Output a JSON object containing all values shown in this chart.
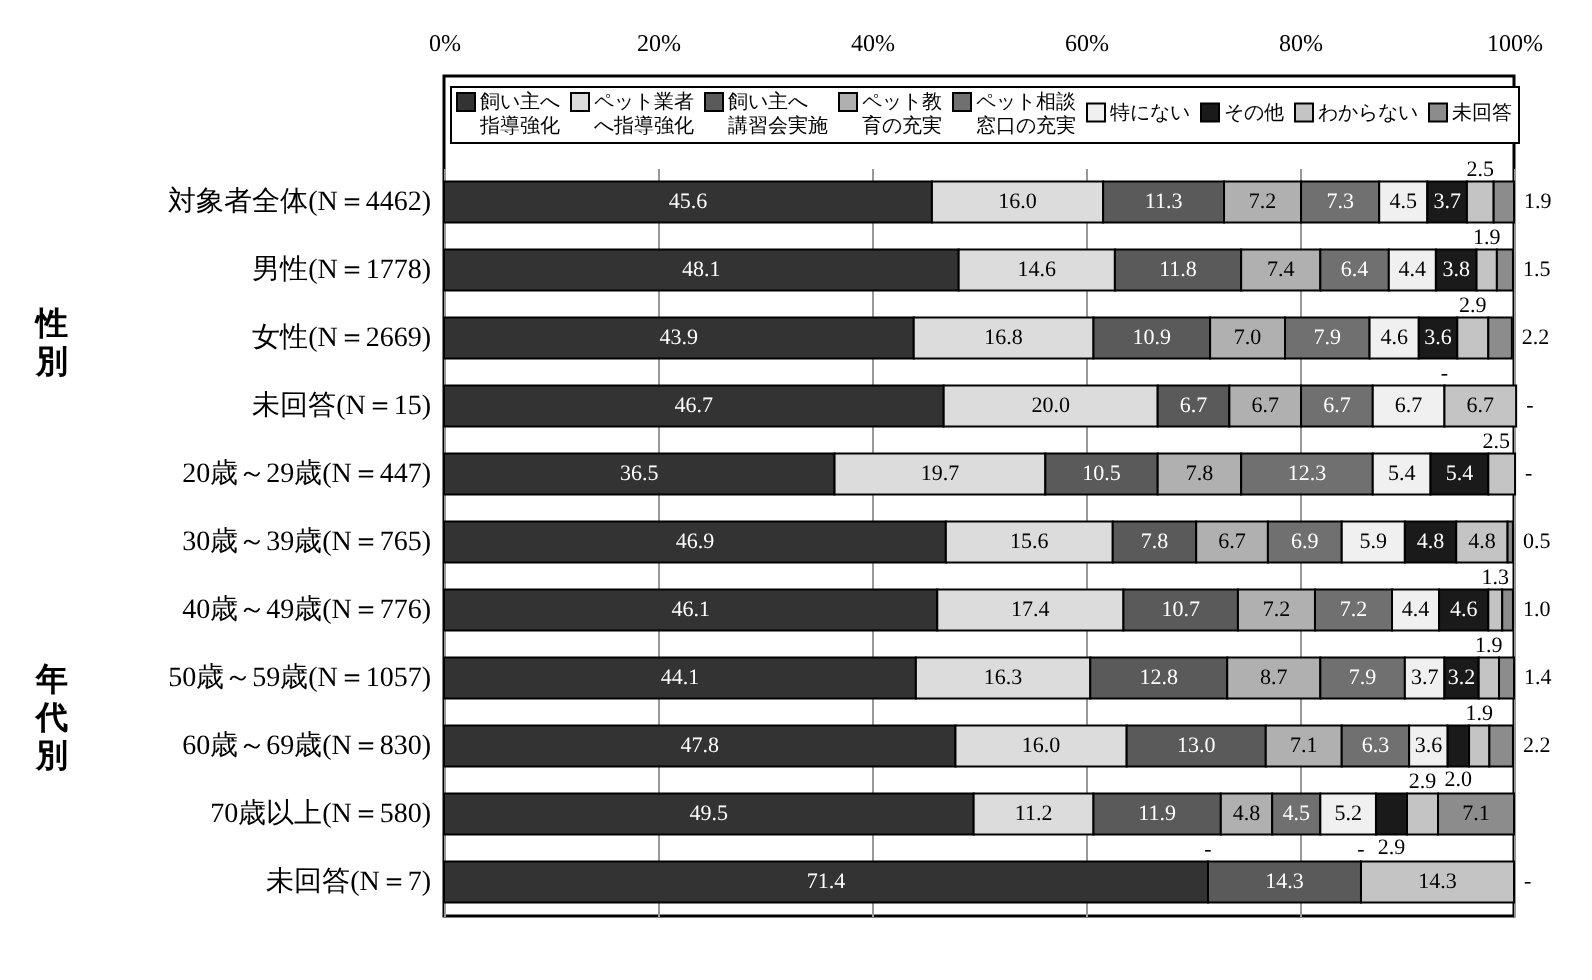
{
  "chart_data": {
    "type": "bar",
    "orientation": "horizontal",
    "stacked": true,
    "categories": [
      "対象者全体(N＝4462)",
      "男性(N＝1778)",
      "女性(N＝2669)",
      "未回答(N＝15)",
      "20歳～29歳(N＝447)",
      "30歳～39歳(N＝765)",
      "40歳～49歳(N＝776)",
      "50歳～59歳(N＝1057)",
      "60歳～69歳(N＝830)",
      "70歳以上(N＝580)",
      "未回答(N＝7)"
    ],
    "series": [
      {
        "name": "飼い主へ指導強化",
        "color": "#333333",
        "values": [
          45.6,
          48.1,
          43.9,
          46.7,
          36.5,
          46.9,
          46.1,
          44.1,
          47.8,
          49.5,
          71.4
        ],
        "value_labels": [
          "45.6",
          "48.1",
          "43.9",
          "46.7",
          "36.5",
          "46.9",
          "46.1",
          "44.1",
          "47.8",
          "49.5",
          "71.4"
        ]
      },
      {
        "name": "ペット業者へ指導強化",
        "color": "#dcdcdc",
        "values": [
          16.0,
          14.6,
          16.8,
          20.0,
          19.7,
          15.6,
          17.4,
          16.3,
          16.0,
          11.2,
          0
        ],
        "value_labels": [
          "16.0",
          "14.6",
          "16.8",
          "20.0",
          "19.7",
          "15.6",
          "17.4",
          "16.3",
          "16.0",
          "11.2",
          null
        ]
      },
      {
        "name": "飼い主へ講習会実施",
        "color": "#5a5a5a",
        "values": [
          11.3,
          11.8,
          10.9,
          6.7,
          10.5,
          7.8,
          10.7,
          12.8,
          13.0,
          11.9,
          14.3
        ],
        "value_labels": [
          "11.3",
          "11.8",
          "10.9",
          "6.7",
          "10.5",
          "7.8",
          "10.7",
          "12.8",
          "13.0",
          "11.9",
          "14.3"
        ]
      },
      {
        "name": "ペット教育の充実",
        "color": "#b0b0b0",
        "values": [
          7.2,
          7.4,
          7.0,
          6.7,
          7.8,
          6.7,
          7.2,
          8.7,
          7.1,
          4.8,
          0
        ],
        "value_labels": [
          "7.2",
          "7.4",
          "7.0",
          "6.7",
          "7.8",
          "6.7",
          "7.2",
          "8.7",
          "7.1",
          "4.8",
          null
        ]
      },
      {
        "name": "ペット相談窓口の充実",
        "color": "#707070",
        "values": [
          7.3,
          6.4,
          7.9,
          6.7,
          12.3,
          6.9,
          7.2,
          7.9,
          6.3,
          4.5,
          null
        ],
        "value_labels": [
          "7.3",
          "6.4",
          "7.9",
          "6.7",
          "12.3",
          "6.9",
          "7.2",
          "7.9",
          "6.3",
          "4.5",
          null
        ]
      },
      {
        "name": "特にない",
        "color": "#f0f0f0",
        "values": [
          4.5,
          4.4,
          4.6,
          6.7,
          5.4,
          5.9,
          4.4,
          3.7,
          3.6,
          5.2,
          null
        ],
        "value_labels": [
          "4.5",
          "4.4",
          "4.6",
          "6.7",
          "5.4",
          "5.9",
          "4.4",
          "3.7",
          "3.6",
          "5.2",
          null
        ]
      },
      {
        "name": "その他",
        "color": "#1a1a1a",
        "values": [
          3.7,
          3.8,
          3.6,
          0,
          5.4,
          4.8,
          4.6,
          3.2,
          2.0,
          2.9,
          null
        ],
        "value_labels": [
          "3.7",
          "3.8",
          "3.6",
          null,
          "5.4",
          "4.8",
          "4.6",
          "3.2",
          "2.0",
          "2.9",
          null
        ]
      },
      {
        "name": "わからない",
        "color": "#c4c4c4",
        "values": [
          2.5,
          1.9,
          2.9,
          6.7,
          2.5,
          4.8,
          1.3,
          1.9,
          1.9,
          2.9,
          14.3
        ],
        "value_labels": [
          "2.5",
          "1.9",
          "2.9",
          "6.7",
          "2.5",
          "4.8",
          "1.3",
          "1.9",
          "1.9",
          "2.9",
          "14.3"
        ]
      },
      {
        "name": "未回答",
        "color": "#8c8c8c",
        "values": [
          1.9,
          1.5,
          2.2,
          0,
          0,
          0.5,
          1.0,
          1.4,
          2.2,
          7.1,
          0
        ],
        "value_labels": [
          "1.9",
          "1.5",
          "2.2",
          null,
          null,
          "0.5",
          "1.0",
          "1.4",
          "2.2",
          "7.1",
          null
        ]
      }
    ],
    "xlim": [
      0,
      100
    ],
    "xticks": [
      {
        "value": 0,
        "label": "0%"
      },
      {
        "value": 20,
        "label": "20%"
      },
      {
        "value": 40,
        "label": "40%"
      },
      {
        "value": 60,
        "label": "60%"
      },
      {
        "value": 80,
        "label": "80%"
      },
      {
        "value": 100,
        "label": "100%"
      }
    ],
    "grid": "x",
    "legend": "top",
    "annotations": [
      "性別",
      "年代別",
      {
        "text": "-",
        "x": 93.5,
        "y": "未回答(N＝15)"
      },
      {
        "text": "-",
        "x": 100.2,
        "y": "未回答(N＝15)"
      },
      {
        "text": "-",
        "x": 100.1,
        "y": "20歳～29歳(N＝447)"
      },
      {
        "text": "-",
        "x": 71.4,
        "y": "未回答(N＝7)"
      },
      {
        "text": "-",
        "x": 85.7,
        "y": "未回答(N＝7)"
      },
      {
        "text": "-",
        "x": 100,
        "y": "未回答(N＝7)"
      }
    ]
  }
}
